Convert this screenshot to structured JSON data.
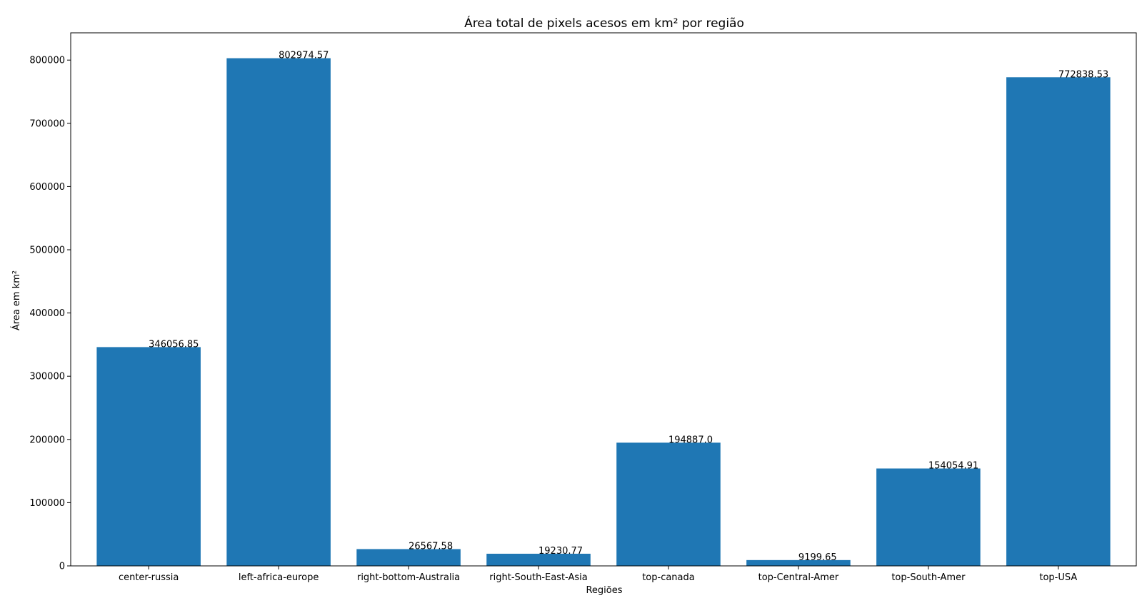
{
  "chart_data": {
    "type": "bar",
    "title": "Área total de pixels acesos em km² por região",
    "xlabel": "Regiões",
    "ylabel": "Área em km²",
    "categories": [
      "center-russia",
      "left-africa-europe",
      "right-bottom-Australia",
      "right-South-East-Asia",
      "top-canada",
      "top-Central-Amer",
      "top-South-Amer",
      "top-USA"
    ],
    "values": [
      346056.85,
      802974.57,
      26567.58,
      19230.77,
      194887.0,
      9199.65,
      154054.91,
      772838.53
    ],
    "value_labels": [
      "346056.85",
      "802974.57",
      "26567.58",
      "19230.77",
      "194887.0",
      "9199.65",
      "154054.91",
      "772838.53"
    ],
    "yticks": [
      0,
      100000,
      200000,
      300000,
      400000,
      500000,
      600000,
      700000,
      800000
    ],
    "ytick_labels": [
      "0",
      "100000",
      "200000",
      "300000",
      "400000",
      "500000",
      "600000",
      "700000",
      "800000"
    ],
    "ylim": [
      0,
      843123.3
    ],
    "grid": false,
    "legend": "none",
    "bar_color": "#1f77b4"
  }
}
